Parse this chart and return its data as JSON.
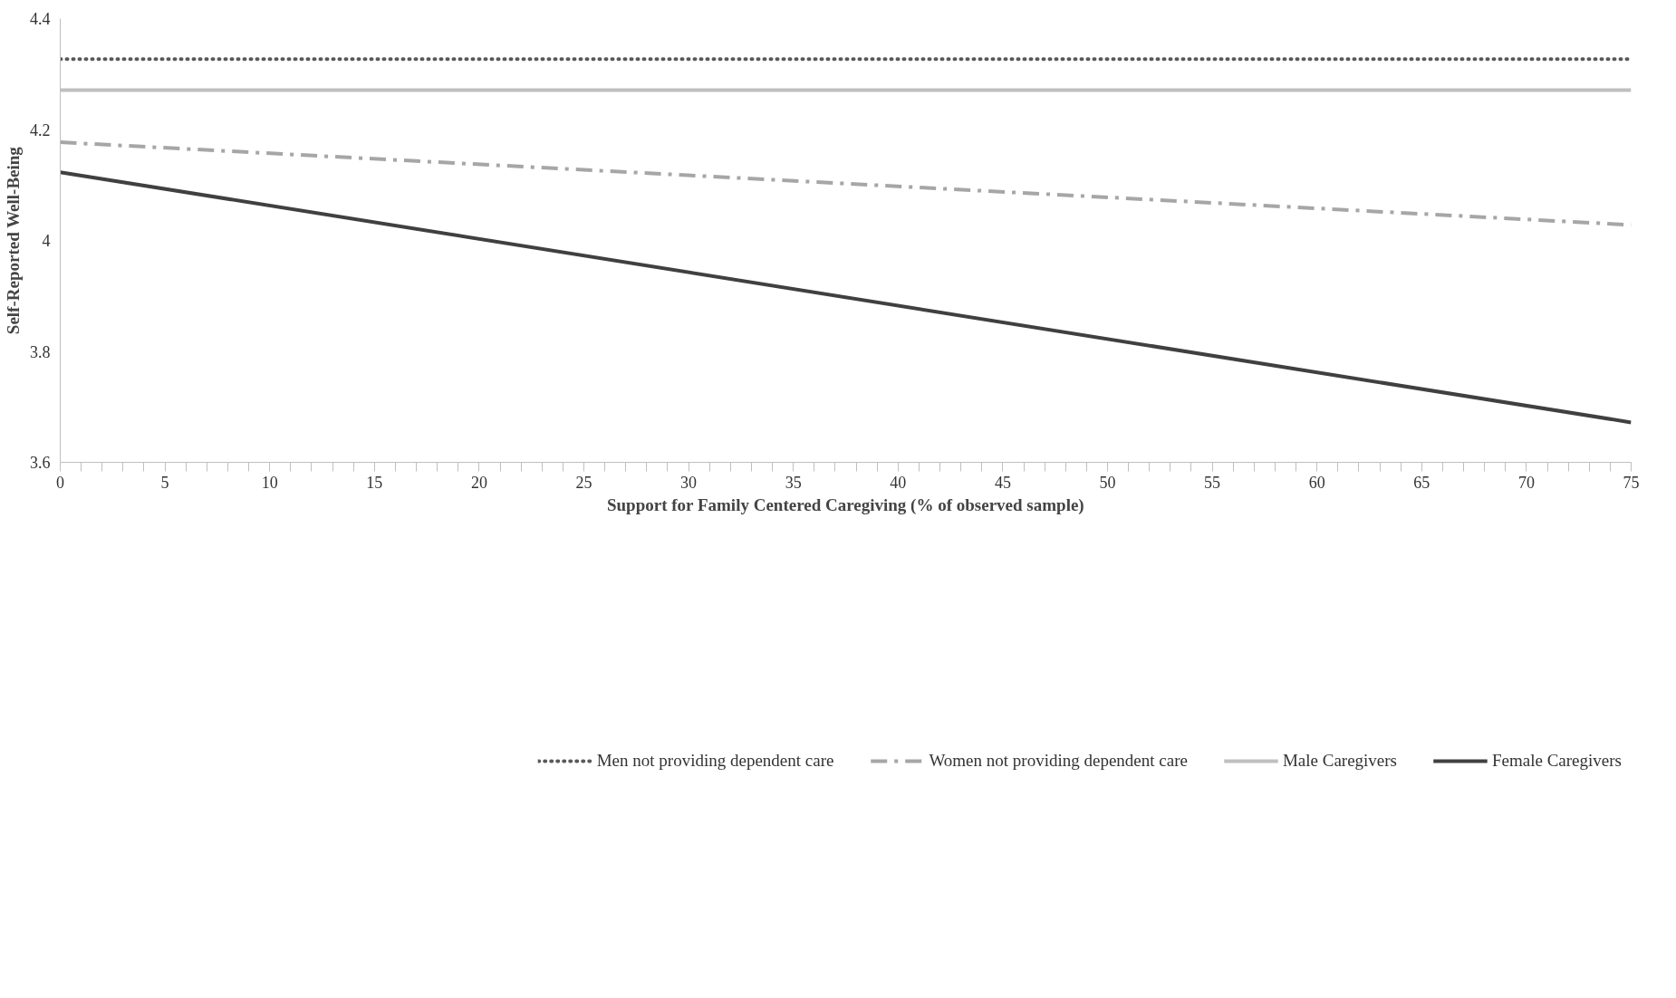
{
  "chart_data": {
    "type": "line",
    "xlabel": "Support for Family Centered Caregiving (% of observed sample)",
    "ylabel": "Self-Reported Well-Being",
    "x": [
      0,
      75
    ],
    "series": [
      {
        "name": "Men not providing dependent care",
        "color": "#595959",
        "line_style": "dotted",
        "values": [
          4.327,
          4.327
        ]
      },
      {
        "name": "Women not providing dependent care",
        "color": "#a6a6a6",
        "line_style": "dashdot",
        "values": [
          4.177,
          4.028
        ]
      },
      {
        "name": "Male Caregivers",
        "color": "#bfbfbf",
        "line_style": "solid",
        "values": [
          4.271,
          4.271
        ]
      },
      {
        "name": "Female Caregivers",
        "color": "#404040",
        "line_style": "solid",
        "values": [
          4.123,
          3.672
        ]
      }
    ],
    "xlim": [
      0,
      75
    ],
    "xticks": [
      0,
      {
        "value": 1,
        "label": null
      },
      {
        "value": 2,
        "label": null
      },
      {
        "value": 3,
        "label": null
      },
      {
        "value": 4,
        "label": null
      },
      5,
      {
        "value": 6,
        "label": null
      },
      {
        "value": 7,
        "label": null
      },
      {
        "value": 8,
        "label": null
      },
      {
        "value": 9,
        "label": null
      },
      10,
      {
        "value": 11,
        "label": null
      },
      {
        "value": 12,
        "label": null
      },
      {
        "value": 13,
        "label": null
      },
      {
        "value": 14,
        "label": null
      },
      15,
      {
        "value": 16,
        "label": null
      },
      {
        "value": 17,
        "label": null
      },
      {
        "value": 18,
        "label": null
      },
      {
        "value": 19,
        "label": null
      },
      20,
      {
        "value": 21,
        "label": null
      },
      {
        "value": 22,
        "label": null
      },
      {
        "value": 23,
        "label": null
      },
      {
        "value": 24,
        "label": null
      },
      25,
      {
        "value": 26,
        "label": null
      },
      {
        "value": 27,
        "label": null
      },
      {
        "value": 28,
        "label": null
      },
      {
        "value": 29,
        "label": null
      },
      30,
      {
        "value": 31,
        "label": null
      },
      {
        "value": 32,
        "label": null
      },
      {
        "value": 33,
        "label": null
      },
      {
        "value": 34,
        "label": null
      },
      35,
      {
        "value": 36,
        "label": null
      },
      {
        "value": 37,
        "label": null
      },
      {
        "value": 38,
        "label": null
      },
      {
        "value": 39,
        "label": null
      },
      40,
      {
        "value": 41,
        "label": null
      },
      {
        "value": 42,
        "label": null
      },
      {
        "value": 43,
        "label": null
      },
      {
        "value": 44,
        "label": null
      },
      45,
      {
        "value": 46,
        "label": null
      },
      {
        "value": 47,
        "label": null
      },
      {
        "value": 48,
        "label": null
      },
      {
        "value": 49,
        "label": null
      },
      50,
      {
        "value": 51,
        "label": null
      },
      {
        "value": 52,
        "label": null
      },
      {
        "value": 53,
        "label": null
      },
      {
        "value": 54,
        "label": null
      },
      55,
      {
        "value": 56,
        "label": null
      },
      {
        "value": 57,
        "label": null
      },
      {
        "value": 58,
        "label": null
      },
      {
        "value": 59,
        "label": null
      },
      60,
      {
        "value": 61,
        "label": null
      },
      {
        "value": 62,
        "label": null
      },
      {
        "value": 63,
        "label": null
      },
      {
        "value": 64,
        "label": null
      },
      65,
      {
        "value": 66,
        "label": null
      },
      {
        "value": 67,
        "label": null
      },
      {
        "value": 68,
        "label": null
      },
      {
        "value": 69,
        "label": null
      },
      70,
      {
        "value": 71,
        "label": null
      },
      {
        "value": 72,
        "label": null
      },
      {
        "value": 73,
        "label": null
      },
      {
        "value": 74,
        "label": null
      },
      75
    ],
    "ylim": [
      3.6,
      4.4
    ],
    "yticks": [
      3.6,
      3.8,
      4,
      4.2,
      4.4
    ],
    "grid": false,
    "legend": "bottom",
    "marker": "none"
  }
}
